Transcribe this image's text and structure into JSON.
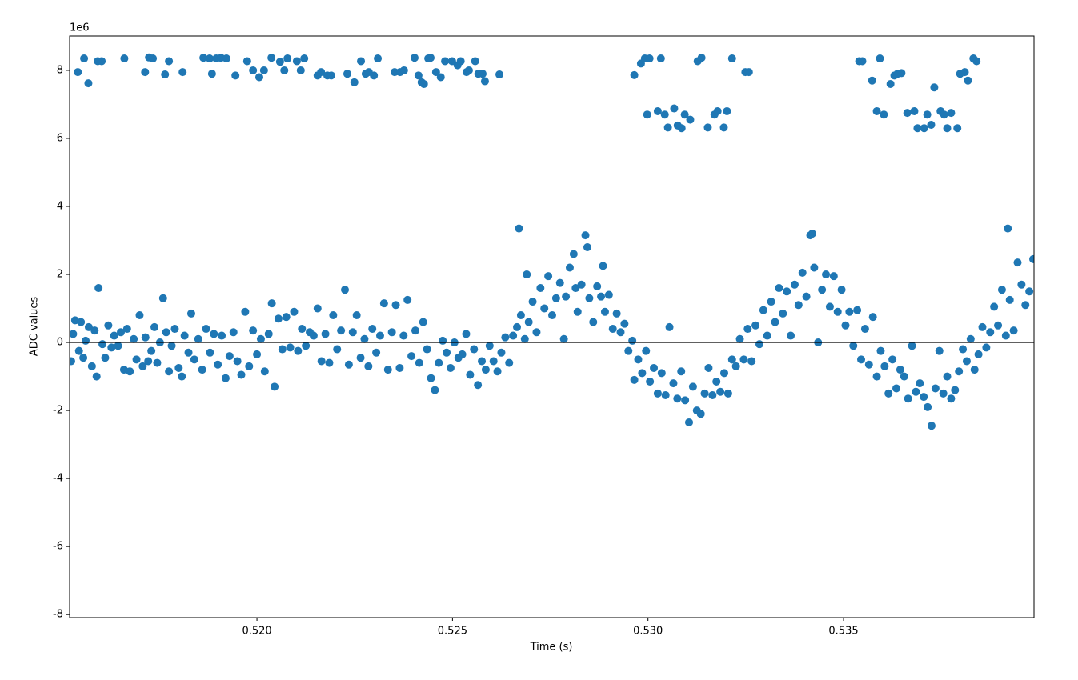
{
  "chart_data": {
    "type": "scatter",
    "x_label": "Time (s)",
    "y_label": "ADC values",
    "y_offset_label": "1e6",
    "color": "#1f77b4",
    "hline": 0,
    "hline_color": "#000000",
    "xlim": [
      0.51521,
      0.53987
    ],
    "ylim": [
      -8.09,
      9.01
    ],
    "xticks": [
      {
        "value": 0.52,
        "label": "0.520"
      },
      {
        "value": 0.525,
        "label": "0.525"
      },
      {
        "value": 0.53,
        "label": "0.530"
      },
      {
        "value": 0.535,
        "label": "0.535"
      }
    ],
    "yticks": [
      -8,
      -6,
      -4,
      -2,
      0,
      2,
      4,
      6,
      8
    ],
    "x": [
      0.51525,
      0.5153,
      0.51535,
      0.51545,
      0.5155,
      0.51556,
      0.51562,
      0.5157,
      0.51578,
      0.51585,
      0.5159,
      0.51595,
      0.51605,
      0.51612,
      0.5162,
      0.51628,
      0.51635,
      0.51645,
      0.51652,
      0.5166,
      0.51668,
      0.51675,
      0.51685,
      0.51692,
      0.517,
      0.51708,
      0.51715,
      0.51722,
      0.5173,
      0.51738,
      0.51745,
      0.51752,
      0.5176,
      0.51768,
      0.51775,
      0.51782,
      0.5179,
      0.518,
      0.51808,
      0.51815,
      0.51825,
      0.51832,
      0.5184,
      0.5185,
      0.5186,
      0.5187,
      0.5188,
      0.5189,
      0.519,
      0.5191,
      0.5192,
      0.5193,
      0.5194,
      0.5195,
      0.5196,
      0.5197,
      0.5198,
      0.5199,
      0.52,
      0.5201,
      0.5202,
      0.5203,
      0.52038,
      0.52045,
      0.52055,
      0.52065,
      0.52075,
      0.52085,
      0.52095,
      0.52105,
      0.52115,
      0.52125,
      0.52135,
      0.52145,
      0.52155,
      0.52165,
      0.52175,
      0.52185,
      0.52195,
      0.52205,
      0.52215,
      0.52225,
      0.52235,
      0.52245,
      0.52255,
      0.52265,
      0.52275,
      0.52285,
      0.52295,
      0.52305,
      0.52315,
      0.52325,
      0.52335,
      0.52345,
      0.52355,
      0.52365,
      0.52375,
      0.52385,
      0.52395,
      0.52405,
      0.52415,
      0.52425,
      0.52435,
      0.52445,
      0.52455,
      0.52465,
      0.52475,
      0.52485,
      0.52495,
      0.52505,
      0.52515,
      0.52525,
      0.52535,
      0.52545,
      0.52555,
      0.52565,
      0.52575,
      0.52585,
      0.52595,
      0.52605,
      0.52615,
      0.52625,
      0.52635,
      0.52645,
      0.52655,
      0.52665,
      0.5267,
      0.52675,
      0.52685,
      0.5269,
      0.52695,
      0.52705,
      0.52715,
      0.52725,
      0.52735,
      0.52745,
      0.52755,
      0.52765,
      0.52775,
      0.52785,
      0.5279,
      0.528,
      0.5281,
      0.52815,
      0.5282,
      0.5283,
      0.5284,
      0.52845,
      0.5285,
      0.5286,
      0.5287,
      0.5288,
      0.52885,
      0.5289,
      0.529,
      0.5291,
      0.5292,
      0.5293,
      0.5294,
      0.5295,
      0.5296,
      0.52965,
      0.52975,
      0.52985,
      0.52995,
      0.53005,
      0.53015,
      0.53025,
      0.53035,
      0.53045,
      0.53055,
      0.53065,
      0.53075,
      0.53085,
      0.53095,
      0.53105,
      0.53115,
      0.53125,
      0.53135,
      0.53145,
      0.53155,
      0.53165,
      0.53175,
      0.53185,
      0.53195,
      0.53205,
      0.53215,
      0.53225,
      0.53235,
      0.53245,
      0.53255,
      0.53265,
      0.53275,
      0.53285,
      0.53295,
      0.53305,
      0.53315,
      0.53325,
      0.53335,
      0.53345,
      0.53355,
      0.53365,
      0.53375,
      0.53385,
      0.53395,
      0.53405,
      0.53415,
      0.5342,
      0.53425,
      0.53435,
      0.53445,
      0.53455,
      0.53465,
      0.53475,
      0.53485,
      0.53495,
      0.53505,
      0.53515,
      0.53525,
      0.53535,
      0.53545,
      0.53555,
      0.53565,
      0.53575,
      0.53585,
      0.53595,
      0.53605,
      0.53615,
      0.53625,
      0.53635,
      0.53645,
      0.53655,
      0.53665,
      0.53675,
      0.53685,
      0.53695,
      0.53705,
      0.53715,
      0.53725,
      0.53735,
      0.53745,
      0.53755,
      0.53765,
      0.53775,
      0.53785,
      0.53795,
      0.53805,
      0.53815,
      0.53825,
      0.53835,
      0.53845,
      0.53855,
      0.53865,
      0.53875,
      0.53885,
      0.53895,
      0.53905,
      0.53915,
      0.5392,
      0.53925,
      0.53935,
      0.53945,
      0.53955,
      0.53965,
      0.53975,
      0.53985,
      0.51542,
      0.51558,
      0.51569,
      0.51593,
      0.51603,
      0.51661,
      0.51714,
      0.51724,
      0.51734,
      0.51765,
      0.51775,
      0.5181,
      0.51863,
      0.51879,
      0.51885,
      0.51896,
      0.51908,
      0.51922,
      0.51945,
      0.51975,
      0.5199,
      0.52006,
      0.52018,
      0.52037,
      0.52059,
      0.5207,
      0.52078,
      0.52102,
      0.52112,
      0.52121,
      0.52155,
      0.52164,
      0.5218,
      0.5219,
      0.52231,
      0.52249,
      0.52266,
      0.52278,
      0.52286,
      0.52299,
      0.52309,
      0.52352,
      0.52366,
      0.52376,
      0.52403,
      0.52413,
      0.52421,
      0.52427,
      0.52438,
      0.52444,
      0.52458,
      0.5247,
      0.52481,
      0.52499,
      0.52513,
      0.52521,
      0.52536,
      0.52542,
      0.52558,
      0.52566,
      0.52577,
      0.52583,
      0.5262,
      0.52965,
      0.52982,
      0.52992,
      0.53004,
      0.53033,
      0.52998,
      0.53025,
      0.53043,
      0.53051,
      0.53067,
      0.53076,
      0.53086,
      0.53094,
      0.53108,
      0.53127,
      0.53137,
      0.53153,
      0.5317,
      0.53178,
      0.53194,
      0.53202,
      0.53215,
      0.53249,
      0.53258,
      0.5354,
      0.53548,
      0.53573,
      0.53593,
      0.53585,
      0.53603,
      0.5362,
      0.5363,
      0.53638,
      0.53648,
      0.53663,
      0.53681,
      0.53689,
      0.53706,
      0.53714,
      0.53724,
      0.53732,
      0.53748,
      0.53757,
      0.53765,
      0.53775,
      0.53791,
      0.53798,
      0.5381,
      0.53818,
      0.53832,
      0.5384
    ],
    "values": [
      -0.55,
      0.25,
      0.65,
      -0.25,
      0.6,
      -0.45,
      0.05,
      0.45,
      -0.7,
      0.35,
      -1.0,
      1.6,
      -0.05,
      -0.45,
      0.5,
      -0.15,
      0.2,
      -0.1,
      0.3,
      -0.8,
      0.4,
      -0.85,
      0.1,
      -0.5,
      0.8,
      -0.7,
      0.15,
      -0.55,
      -0.25,
      0.45,
      -0.6,
      0.0,
      1.3,
      0.3,
      -0.85,
      -0.1,
      0.4,
      -0.75,
      -1.0,
      0.2,
      -0.3,
      0.85,
      -0.5,
      0.1,
      -0.8,
      0.4,
      -0.3,
      0.25,
      -0.65,
      0.2,
      -1.05,
      -0.4,
      0.3,
      -0.55,
      -0.95,
      0.9,
      -0.7,
      0.35,
      -0.35,
      0.1,
      -0.85,
      0.25,
      1.15,
      -1.3,
      0.7,
      -0.2,
      0.75,
      -0.15,
      0.9,
      -0.25,
      0.4,
      -0.1,
      0.3,
      0.2,
      1.0,
      -0.55,
      0.25,
      -0.6,
      0.8,
      -0.2,
      0.35,
      1.55,
      -0.65,
      0.3,
      0.8,
      -0.45,
      0.1,
      -0.7,
      0.4,
      -0.3,
      0.2,
      1.15,
      -0.8,
      0.3,
      1.1,
      -0.75,
      0.2,
      1.25,
      -0.4,
      0.35,
      -0.6,
      0.6,
      -0.2,
      -1.05,
      -1.4,
      -0.6,
      0.05,
      -0.3,
      -0.75,
      0.0,
      -0.45,
      -0.35,
      0.25,
      -0.95,
      -0.2,
      -1.25,
      -0.55,
      -0.8,
      -0.1,
      -0.55,
      -0.85,
      -0.3,
      0.15,
      -0.6,
      0.2,
      0.45,
      3.35,
      0.8,
      0.1,
      2.0,
      0.6,
      1.2,
      0.3,
      1.6,
      1.0,
      1.95,
      0.8,
      1.3,
      1.75,
      0.1,
      1.35,
      2.2,
      2.6,
      1.6,
      0.9,
      1.7,
      3.15,
      2.8,
      1.3,
      0.6,
      1.65,
      1.35,
      2.25,
      0.9,
      1.4,
      0.4,
      0.85,
      0.3,
      0.55,
      -0.25,
      0.05,
      -1.1,
      -0.5,
      -0.9,
      -0.25,
      -1.15,
      -0.75,
      -1.5,
      -0.9,
      -1.55,
      0.45,
      -1.2,
      -1.65,
      -0.85,
      -1.7,
      -2.35,
      -1.3,
      -2.0,
      -2.1,
      -1.5,
      -0.75,
      -1.55,
      -1.15,
      -1.45,
      -0.9,
      -1.5,
      -0.5,
      -0.7,
      0.1,
      -0.5,
      0.4,
      -0.55,
      0.5,
      -0.05,
      0.95,
      0.2,
      1.2,
      0.6,
      1.6,
      0.85,
      1.5,
      0.2,
      1.7,
      1.1,
      2.05,
      1.35,
      3.15,
      3.2,
      2.2,
      0.0,
      1.55,
      2.0,
      1.05,
      1.95,
      0.9,
      1.55,
      0.5,
      0.9,
      -0.1,
      0.95,
      -0.5,
      0.4,
      -0.65,
      0.75,
      -1.0,
      -0.25,
      -0.7,
      -1.5,
      -0.5,
      -1.35,
      -0.8,
      -1.0,
      -1.65,
      -0.1,
      -1.45,
      -1.2,
      -1.6,
      -1.9,
      -2.45,
      -1.35,
      -0.25,
      -1.5,
      -1.0,
      -1.65,
      -1.4,
      -0.85,
      -0.2,
      -0.55,
      0.1,
      -0.8,
      -0.35,
      0.45,
      -0.15,
      0.3,
      1.05,
      0.5,
      1.55,
      0.2,
      3.35,
      1.25,
      0.35,
      2.35,
      1.7,
      1.1,
      1.5,
      2.45,
      7.95,
      8.35,
      7.62,
      8.27,
      8.27,
      8.35,
      7.95,
      8.38,
      8.35,
      7.88,
      8.27,
      7.95,
      8.37,
      8.35,
      7.9,
      8.35,
      8.37,
      8.35,
      7.85,
      8.27,
      8.0,
      7.8,
      8.0,
      8.37,
      8.25,
      8.0,
      8.35,
      8.27,
      8.0,
      8.35,
      7.85,
      7.95,
      7.85,
      7.85,
      7.9,
      7.65,
      8.27,
      7.9,
      7.95,
      7.85,
      8.35,
      7.95,
      7.95,
      8.0,
      8.37,
      7.85,
      7.65,
      7.6,
      8.35,
      8.37,
      7.95,
      7.8,
      8.27,
      8.27,
      8.15,
      8.27,
      7.95,
      8.0,
      8.27,
      7.9,
      7.9,
      7.68,
      7.88,
      7.86,
      8.2,
      8.35,
      8.35,
      8.35,
      6.7,
      6.8,
      6.7,
      6.32,
      6.88,
      6.38,
      6.3,
      6.7,
      6.55,
      8.27,
      8.37,
      6.32,
      6.7,
      6.8,
      6.32,
      6.8,
      8.35,
      7.95,
      7.95,
      8.27,
      8.27,
      7.7,
      8.35,
      6.8,
      6.7,
      7.6,
      7.85,
      7.9,
      7.92,
      6.75,
      6.8,
      6.3,
      6.3,
      6.7,
      6.4,
      7.5,
      6.8,
      6.7,
      6.3,
      6.75,
      6.3,
      7.9,
      7.95,
      7.7,
      8.35,
      8.27
    ]
  }
}
